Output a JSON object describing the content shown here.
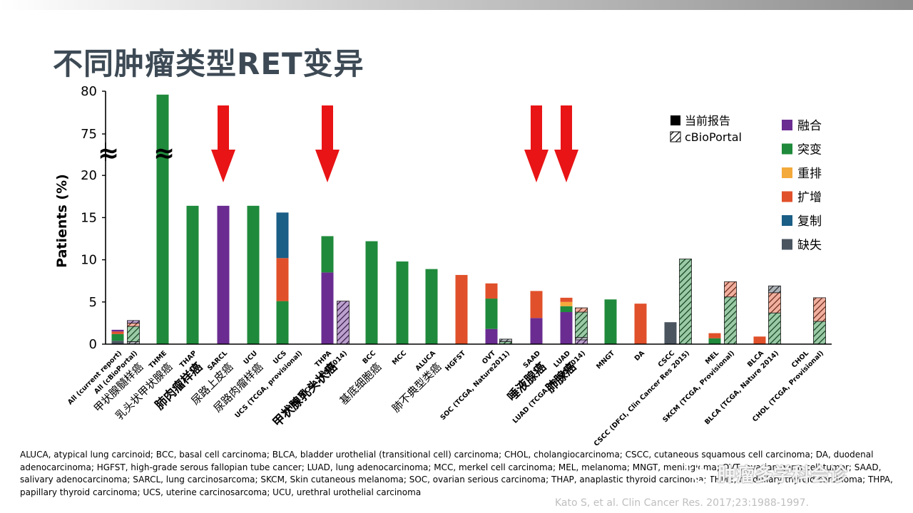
{
  "page": {
    "title": "不同肿瘤类型RET变异",
    "abbreviations": "ALUCA, atypical lung carcinoid; BCC, basal cell carcinoma; BLCA, bladder urothelial (transitional cell) carcinoma; CHOL, cholangiocarcinoma; CSCC, cutaneous squamous cell carcinoma; DA, duodenal adenocarcinoma; HGFST, high-grade serous fallopian tube cancer; LUAD, lung adenocarcinoma; MCC, merkel cell carcinoma; MEL, melanoma; MNGT, meningioma; OVT, ovarian germ cell tumor; SAAD, salivary adenocarcinoma; SARCL, lung carcinosarcoma; SKCM, Skin cutaneous melanoma; SOC, ovarian serious carcinoma; THAP, anaplastic thyroid carcinoma; THME, medullary thyroid carcinoma; THPA, papillary thyroid carcinoma; UCS, uterine carcinosarcoma; UCU, urethral urothelial carcinoma",
    "citation": "Kato S, et al. Clin Cancer Res. 2017;23:1988-1997.",
    "watermark": "肿瘤多学科会诊",
    "watermark_icon": "wechat-icon"
  },
  "chart_data": {
    "type": "bar",
    "stacked": true,
    "title": "",
    "xlabel": "",
    "ylabel": "Patients (%)",
    "ylim": [
      0,
      80
    ],
    "axis_break": [
      20,
      75
    ],
    "y_ticks": [
      "0",
      "5",
      "10",
      "15",
      "20",
      "75",
      "80"
    ],
    "break_symbol": "≈",
    "legend": {
      "position": "top-right",
      "source": [
        {
          "label": "当前报告",
          "style": "solid",
          "color": "#000000"
        },
        {
          "label": "cBioPortal",
          "style": "hatched",
          "color": "#000000"
        }
      ],
      "types": [
        {
          "label": "融合",
          "color": "#6a2c91"
        },
        {
          "label": "突变",
          "color": "#1f8a3b"
        },
        {
          "label": "重排",
          "color": "#f4a93b"
        },
        {
          "label": "扩增",
          "color": "#e0502a"
        },
        {
          "label": "复制",
          "color": "#1b5e86"
        },
        {
          "label": "缺失",
          "color": "#4a5560"
        }
      ]
    },
    "categories": [
      {
        "label": "All (current report)",
        "cn": "",
        "source": "current",
        "segments": [
          {
            "type": "缺失",
            "value": 0.4
          },
          {
            "type": "突变",
            "value": 0.8
          },
          {
            "type": "扩增",
            "value": 0.3
          },
          {
            "type": "融合",
            "value": 0.2
          }
        ]
      },
      {
        "label": "All (cBioPortal)",
        "cn": "甲状腺髓样癌",
        "source": "cbio",
        "segments": [
          {
            "type": "缺失",
            "value": 0.3
          },
          {
            "type": "突变",
            "value": 1.8
          },
          {
            "type": "扩增",
            "value": 0.4
          },
          {
            "type": "融合",
            "value": 0.3
          }
        ]
      },
      {
        "label": "THME",
        "cn": "乳头状甲状腺癌",
        "source": "current",
        "segments": [
          {
            "type": "突变",
            "value": 79.6
          }
        ]
      },
      {
        "label": "THAP",
        "cn": "肺肉瘤样癌",
        "source": "current",
        "segments": [
          {
            "type": "突变",
            "value": 16.4
          }
        ]
      },
      {
        "label": "SARCL",
        "cn": "尿路上皮癌",
        "source": "current",
        "segments": [
          {
            "type": "融合",
            "value": 16.4
          }
        ]
      },
      {
        "label": "UCU",
        "cn": "尿路肉瘤样癌",
        "source": "current",
        "segments": [
          {
            "type": "突变",
            "value": 16.4
          }
        ]
      },
      {
        "label": "UCS",
        "cn": "",
        "source": "current",
        "segments": [
          {
            "type": "突变",
            "value": 5.1
          },
          {
            "type": "扩增",
            "value": 5.1
          },
          {
            "type": "复制",
            "value": 5.4
          }
        ]
      },
      {
        "label": "UCS (TCGA, provisional)",
        "cn": "",
        "source": "cbio",
        "segments": []
      },
      {
        "label": "THPA",
        "cn": "甲状腺乳头状癌",
        "source": "current",
        "segments": [
          {
            "type": "融合",
            "value": 8.5
          },
          {
            "type": "突变",
            "value": 4.3
          }
        ]
      },
      {
        "label": "THPA (TCGA, Cell2014)",
        "cn": "",
        "source": "cbio",
        "segments": [
          {
            "type": "融合",
            "value": 5.1
          }
        ]
      },
      {
        "label": "BCC",
        "cn": "基底细胞癌",
        "source": "current",
        "segments": [
          {
            "type": "突变",
            "value": 12.2
          }
        ]
      },
      {
        "label": "MCC",
        "cn": "",
        "source": "current",
        "segments": [
          {
            "type": "突变",
            "value": 9.8
          }
        ]
      },
      {
        "label": "ALUCA",
        "cn": "肺不典型类癌",
        "source": "current",
        "segments": [
          {
            "type": "突变",
            "value": 8.9
          }
        ]
      },
      {
        "label": "HGFST",
        "cn": "",
        "source": "current",
        "segments": [
          {
            "type": "扩增",
            "value": 8.2
          }
        ]
      },
      {
        "label": "OVT",
        "cn": "",
        "source": "current",
        "segments": [
          {
            "type": "融合",
            "value": 1.8
          },
          {
            "type": "突变",
            "value": 3.6
          },
          {
            "type": "扩增",
            "value": 1.8
          }
        ]
      },
      {
        "label": "SOC (TCGA, Nature2011)",
        "cn": "",
        "source": "cbio",
        "segments": [
          {
            "type": "突变",
            "value": 0.3
          },
          {
            "type": "缺失",
            "value": 0.3
          }
        ]
      },
      {
        "label": "SAAD",
        "cn": "唾液腺癌",
        "source": "current",
        "segments": [
          {
            "type": "融合",
            "value": 3.1
          },
          {
            "type": "扩增",
            "value": 3.2
          }
        ]
      },
      {
        "label": "LUAD",
        "cn": "肺腺癌",
        "source": "current",
        "segments": [
          {
            "type": "融合",
            "value": 3.8
          },
          {
            "type": "突变",
            "value": 0.7
          },
          {
            "type": "重排",
            "value": 0.5
          },
          {
            "type": "扩增",
            "value": 0.5
          }
        ]
      },
      {
        "label": "LUAD (TCGA, Nature2014)",
        "cn": "",
        "source": "cbio",
        "segments": [
          {
            "type": "融合",
            "value": 0.5
          },
          {
            "type": "缺失",
            "value": 0.3
          },
          {
            "type": "突变",
            "value": 3.0
          },
          {
            "type": "扩增",
            "value": 0.5
          }
        ]
      },
      {
        "label": "MNGT",
        "cn": "",
        "source": "current",
        "segments": [
          {
            "type": "突变",
            "value": 5.3
          }
        ]
      },
      {
        "label": "DA",
        "cn": "",
        "source": "current",
        "segments": [
          {
            "type": "扩增",
            "value": 4.8
          }
        ]
      },
      {
        "label": "CSCC",
        "cn": "",
        "source": "current",
        "segments": [
          {
            "type": "缺失",
            "value": 2.6
          }
        ]
      },
      {
        "label": "CSCC (DFCI, Clin Cancer Res 2015)",
        "cn": "",
        "source": "cbio",
        "segments": [
          {
            "type": "突变",
            "value": 10.1
          }
        ]
      },
      {
        "label": "MEL",
        "cn": "",
        "source": "current",
        "segments": [
          {
            "type": "突变",
            "value": 0.7
          },
          {
            "type": "扩增",
            "value": 0.6
          }
        ]
      },
      {
        "label": "SKCM (TCGA, Provisional)",
        "cn": "",
        "source": "cbio",
        "segments": [
          {
            "type": "突变",
            "value": 5.6
          },
          {
            "type": "扩增",
            "value": 1.8
          }
        ]
      },
      {
        "label": "BLCA",
        "cn": "",
        "source": "current",
        "segments": [
          {
            "type": "扩增",
            "value": 0.9
          }
        ]
      },
      {
        "label": "BLCA (TCGA, Nature 2014)",
        "cn": "",
        "source": "cbio",
        "segments": [
          {
            "type": "突变",
            "value": 3.7
          },
          {
            "type": "扩增",
            "value": 2.4
          },
          {
            "type": "缺失",
            "value": 0.8
          }
        ]
      },
      {
        "label": "CHOL",
        "cn": "",
        "source": "current",
        "segments": []
      },
      {
        "label": "CHOL (TCGA, Provisional)",
        "cn": "",
        "source": "cbio",
        "segments": [
          {
            "type": "突变",
            "value": 2.7
          },
          {
            "type": "扩增",
            "value": 2.8
          }
        ]
      }
    ],
    "bold_cn": [
      "肺肉瘤样癌",
      "甲状腺乳头状癌",
      "唾液腺癌",
      "肺腺癌"
    ],
    "arrows_at": [
      "SARCL",
      "THPA",
      "SAAD",
      "LUAD"
    ],
    "arrow_color": "#e81416"
  }
}
